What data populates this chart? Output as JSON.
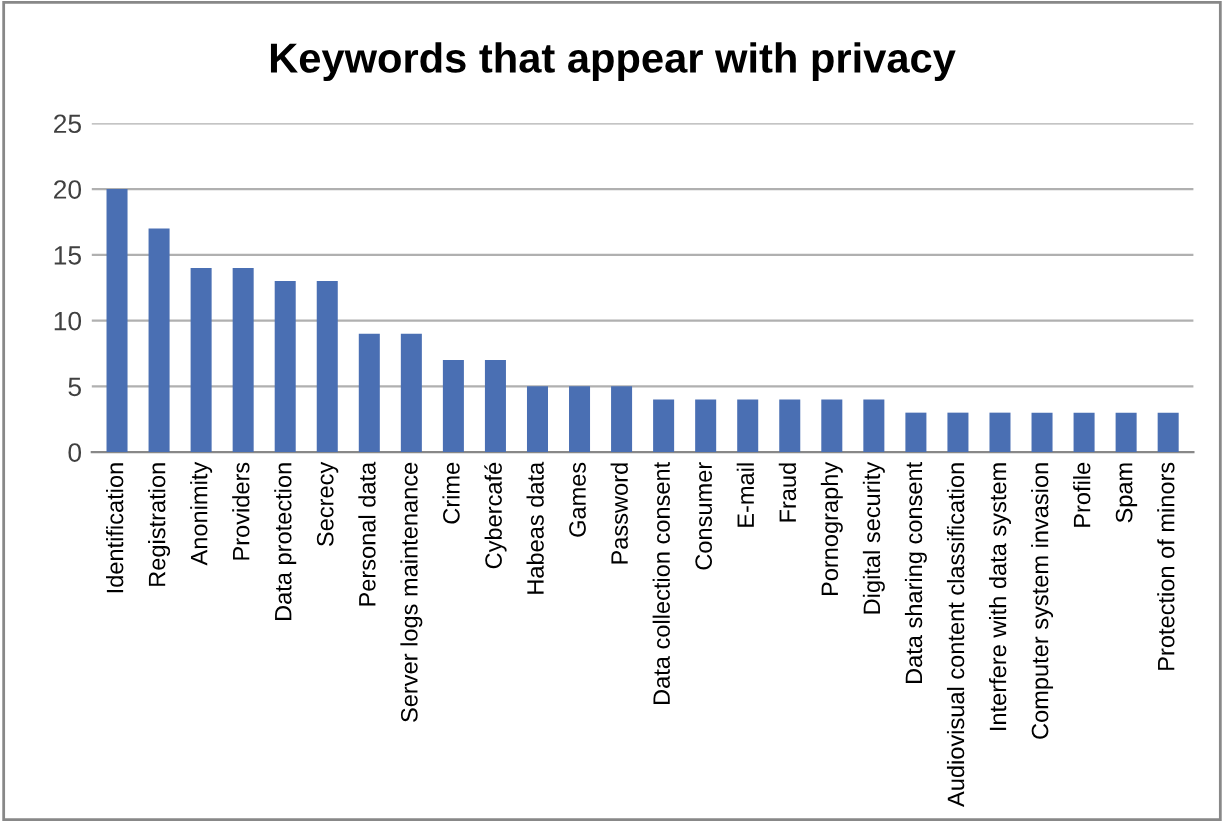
{
  "chart_data": {
    "type": "bar",
    "title": "Keywords that appear with privacy",
    "categories": [
      "Identification",
      "Registration",
      "Anonimity",
      "Providers",
      "Data protection",
      "Secrecy",
      "Personal data",
      "Server logs maintenance",
      "Crime",
      "Cybercafé",
      "Habeas data",
      "Games",
      "Password",
      "Data collection consent",
      "Consumer",
      "E-mail",
      "Fraud",
      "Pornography",
      "Digital security",
      "Data sharing consent",
      "Audiovisual content classification",
      "Interfere with data system",
      "Computer system invasion",
      "Profile",
      "Spam",
      "Protection of minors"
    ],
    "values": [
      20,
      17,
      14,
      14,
      13,
      13,
      9,
      9,
      7,
      7,
      5,
      5,
      5,
      4,
      4,
      4,
      4,
      4,
      4,
      3,
      3,
      3,
      3,
      3,
      3,
      3
    ],
    "color": "#4a6fb3",
    "ylim": [
      0,
      25
    ],
    "yticks": [
      0,
      5,
      10,
      15,
      20,
      25
    ],
    "grid": "y",
    "legend": false
  }
}
